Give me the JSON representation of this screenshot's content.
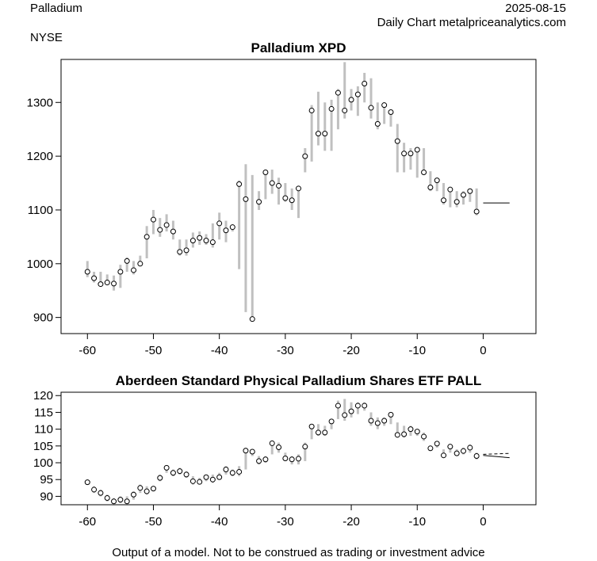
{
  "header": {
    "instrument": "Palladium",
    "exchange": "NYSE",
    "date": "2025-08-15",
    "source": "Daily Chart metalpriceanalytics.com"
  },
  "footer": "Output of a model. Not to be construed as trading or investment advice",
  "colors": {
    "range_bar": "#c0c0c0",
    "axis": "#000000",
    "point_fill": "#ffffff"
  },
  "chart_data": [
    {
      "type": "range",
      "title": "Palladium XPD",
      "xlim": [
        -64,
        8
      ],
      "ylim": [
        870,
        1380
      ],
      "x_ticks": [
        -60,
        -50,
        -40,
        -30,
        -20,
        -10,
        0
      ],
      "y_ticks": [
        900,
        1000,
        1100,
        1200,
        1300
      ],
      "x": [
        -60,
        -59,
        -58,
        -57,
        -56,
        -55,
        -54,
        -53,
        -52,
        -51,
        -50,
        -49,
        -48,
        -47,
        -46,
        -45,
        -44,
        -43,
        -42,
        -41,
        -40,
        -39,
        -38,
        -37,
        -36,
        -35,
        -34,
        -33,
        -32,
        -31,
        -30,
        -29,
        -28,
        -27,
        -26,
        -25,
        -24,
        -23,
        -22,
        -21,
        -20,
        -19,
        -18,
        -17,
        -16,
        -15,
        -14,
        -13,
        -12,
        -11,
        -10,
        -9,
        -8,
        -7,
        -6,
        -5,
        -4,
        -3,
        -2,
        -1
      ],
      "close": [
        985,
        973,
        962,
        965,
        963,
        985,
        1005,
        988,
        1000,
        1050,
        1082,
        1063,
        1072,
        1060,
        1022,
        1025,
        1043,
        1048,
        1043,
        1040,
        1075,
        1062,
        1068,
        1148,
        1120,
        897,
        1115,
        1170,
        1150,
        1145,
        1122,
        1118,
        1140,
        1200,
        1285,
        1242,
        1242,
        1288,
        1318,
        1285,
        1305,
        1315,
        1335,
        1290,
        1260,
        1295,
        1282,
        1228,
        1205,
        1205,
        1212,
        1170,
        1142,
        1155,
        1118,
        1138,
        1115,
        1128,
        1135,
        1097
      ],
      "high": [
        1005,
        985,
        985,
        980,
        978,
        998,
        1012,
        1005,
        1015,
        1070,
        1100,
        1085,
        1092,
        1080,
        1045,
        1045,
        1058,
        1060,
        1055,
        1075,
        1095,
        1080,
        1072,
        1155,
        1185,
        1165,
        1135,
        1175,
        1175,
        1160,
        1150,
        1140,
        1145,
        1215,
        1295,
        1320,
        1300,
        1305,
        1325,
        1375,
        1325,
        1330,
        1355,
        1345,
        1300,
        1300,
        1285,
        1260,
        1225,
        1215,
        1215,
        1215,
        1172,
        1160,
        1150,
        1140,
        1135,
        1135,
        1140,
        1140
      ],
      "low": [
        975,
        965,
        960,
        960,
        950,
        955,
        985,
        980,
        995,
        1010,
        1055,
        1050,
        1060,
        1045,
        1015,
        1015,
        1030,
        1035,
        1035,
        1030,
        1045,
        1040,
        1060,
        990,
        910,
        895,
        1100,
        1120,
        1130,
        1110,
        1115,
        1100,
        1085,
        1170,
        1190,
        1220,
        1210,
        1210,
        1250,
        1270,
        1285,
        1275,
        1300,
        1270,
        1250,
        1260,
        1255,
        1170,
        1170,
        1175,
        1160,
        1165,
        1135,
        1135,
        1110,
        1105,
        1105,
        1110,
        1115,
        1090
      ],
      "forecast": {
        "x": [
          0,
          4
        ],
        "values": [
          1113,
          1113
        ]
      }
    },
    {
      "type": "range",
      "title": "Aberdeen Standard Physical Palladium Shares ETF PALL",
      "xlim": [
        -64,
        8
      ],
      "ylim": [
        87.5,
        121
      ],
      "x_ticks": [
        -60,
        -50,
        -40,
        -30,
        -20,
        -10,
        0
      ],
      "y_ticks": [
        90,
        95,
        100,
        105,
        110,
        115,
        120
      ],
      "x": [
        -60,
        -59,
        -58,
        -57,
        -56,
        -55,
        -54,
        -53,
        -52,
        -51,
        -50,
        -49,
        -48,
        -47,
        -46,
        -45,
        -44,
        -43,
        -42,
        -41,
        -40,
        -39,
        -38,
        -37,
        -36,
        -35,
        -34,
        -33,
        -32,
        -31,
        -30,
        -29,
        -28,
        -27,
        -26,
        -25,
        -24,
        -23,
        -22,
        -21,
        -20,
        -19,
        -18,
        -17,
        -16,
        -15,
        -14,
        -13,
        -12,
        -11,
        -10,
        -9,
        -8,
        -7,
        -6,
        -5,
        -4,
        -3,
        -2,
        -1
      ],
      "close": [
        94.2,
        92.0,
        91.0,
        89.5,
        88.5,
        89.0,
        88.5,
        90.5,
        92.5,
        91.5,
        92.3,
        95.5,
        98.5,
        97.0,
        97.5,
        96.5,
        94.5,
        94.3,
        95.7,
        95.0,
        95.7,
        98.0,
        97.0,
        97.3,
        103.6,
        103.3,
        100.5,
        101.0,
        105.8,
        104.6,
        101.3,
        101.0,
        101.2,
        104.8,
        110.8,
        109.0,
        109.0,
        112.3,
        117.0,
        114.2,
        115.3,
        117.0,
        117.0,
        112.5,
        111.8,
        112.5,
        114.3,
        108.3,
        108.5,
        110.0,
        109.3,
        107.8,
        104.3,
        105.7,
        102.2,
        104.8,
        102.8,
        103.5,
        104.5,
        102.0
      ],
      "high": [
        95.0,
        93.0,
        92.0,
        90.5,
        89.5,
        90.0,
        90.0,
        91.5,
        93.5,
        93.0,
        93.0,
        96.5,
        99.0,
        98.0,
        98.5,
        97.5,
        96.0,
        95.5,
        96.5,
        96.5,
        97.0,
        99.0,
        98.0,
        99.0,
        104.5,
        104.0,
        102.0,
        102.0,
        106.0,
        106.0,
        103.0,
        102.0,
        102.5,
        106.0,
        111.5,
        111.5,
        111.0,
        113.0,
        118.5,
        119.0,
        118.0,
        118.0,
        118.0,
        115.0,
        113.5,
        113.5,
        114.5,
        112.0,
        111.0,
        111.0,
        110.0,
        109.0,
        105.0,
        106.0,
        104.0,
        105.5,
        104.0,
        104.5,
        105.5,
        103.0
      ],
      "low": [
        93.5,
        91.0,
        90.0,
        88.5,
        87.8,
        88.0,
        88.0,
        89.0,
        91.0,
        90.5,
        91.5,
        94.5,
        97.0,
        96.0,
        96.5,
        95.5,
        93.5,
        93.5,
        94.5,
        94.0,
        95.0,
        96.5,
        96.0,
        96.0,
        98.0,
        102.0,
        99.5,
        100.0,
        102.5,
        103.0,
        100.5,
        99.5,
        99.5,
        100.5,
        107.0,
        108.0,
        108.0,
        110.0,
        113.0,
        112.5,
        113.5,
        114.5,
        115.5,
        111.0,
        110.0,
        111.0,
        111.5,
        107.5,
        107.5,
        108.0,
        108.0,
        106.5,
        103.5,
        104.5,
        101.5,
        103.0,
        102.0,
        102.5,
        103.0,
        101.0
      ],
      "forecast": {
        "x": [
          0,
          4
        ],
        "values": [
          102.2,
          101.5
        ],
        "upper": [
          102.5,
          102.8
        ]
      }
    }
  ]
}
